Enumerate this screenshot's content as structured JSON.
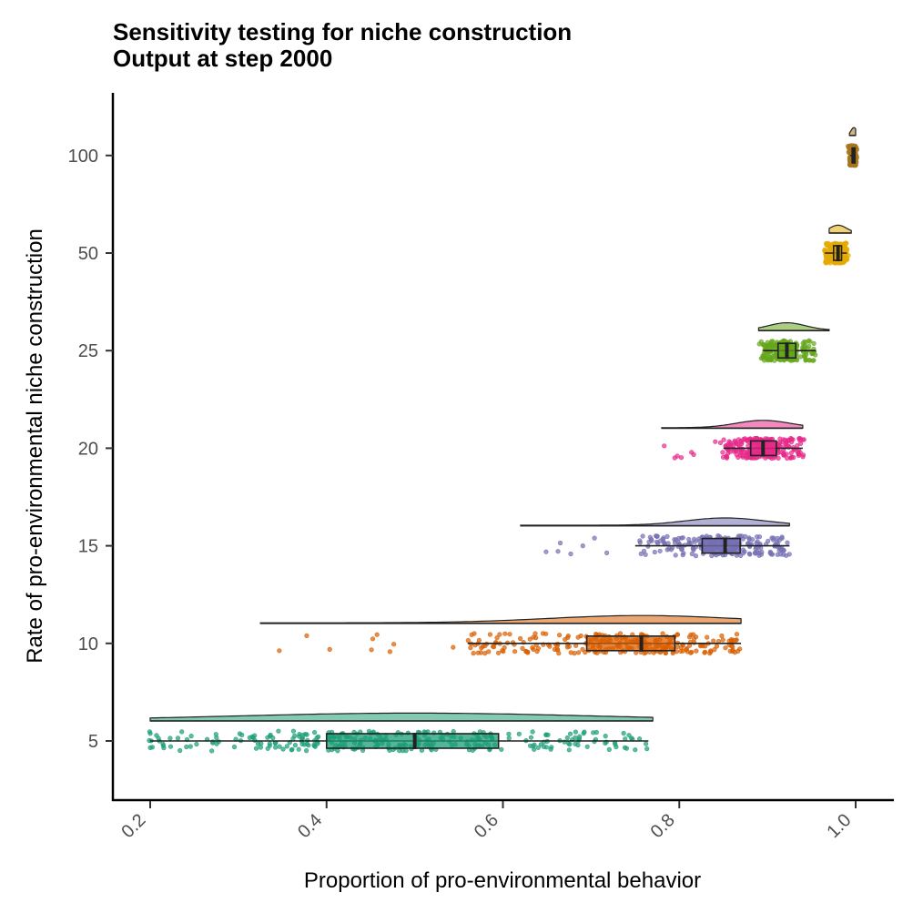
{
  "chart_data": {
    "type": "raincloud",
    "title": "Sensitivity testing for niche construction",
    "subtitle": "Output at step 2000",
    "xlabel": "Proportion of pro-environmental behavior",
    "ylabel": "Rate of pro-environmental niche construction",
    "xlim": [
      0.18,
      1.0
    ],
    "x_ticks": [
      "0.2",
      "0.4",
      "0.6",
      "0.8",
      "1.0"
    ],
    "y_ticks": [
      "5",
      "10",
      "15",
      "20",
      "25",
      "50",
      "100"
    ],
    "grid": false,
    "legend": "none",
    "series": [
      {
        "category": "5",
        "color": "#1b9e77",
        "min": 0.2,
        "q1": 0.4,
        "median": 0.5,
        "q3": 0.595,
        "max": 0.765,
        "cloud_max": 0.77
      },
      {
        "category": "10",
        "color": "#d95f02",
        "min": 0.56,
        "q1": 0.695,
        "median": 0.757,
        "q3": 0.795,
        "max": 0.87,
        "cloud_min": 0.325,
        "cloud_max": 0.87
      },
      {
        "category": "15",
        "color": "#7570b3",
        "min": 0.75,
        "q1": 0.826,
        "median": 0.852,
        "q3": 0.869,
        "max": 0.925,
        "cloud_min": 0.62,
        "cloud_max": 0.925
      },
      {
        "category": "20",
        "color": "#e7298a",
        "min": 0.85,
        "q1": 0.881,
        "median": 0.895,
        "q3": 0.91,
        "max": 0.94,
        "cloud_min": 0.78,
        "cloud_max": 0.94
      },
      {
        "category": "25",
        "color": "#66a61e",
        "min": 0.895,
        "q1": 0.912,
        "median": 0.922,
        "q3": 0.932,
        "max": 0.955,
        "cloud_min": 0.89,
        "cloud_max": 0.97
      },
      {
        "category": "50",
        "color": "#e6ab02",
        "min": 0.965,
        "q1": 0.975,
        "median": 0.98,
        "q3": 0.984,
        "max": 0.99,
        "cloud_min": 0.97,
        "cloud_max": 0.995
      },
      {
        "category": "100",
        "color": "#a6761d",
        "min": 0.994,
        "q1": 0.996,
        "median": 0.998,
        "q3": 0.999,
        "max": 1.0,
        "cloud_min": 0.993,
        "cloud_max": 1.0
      }
    ]
  }
}
